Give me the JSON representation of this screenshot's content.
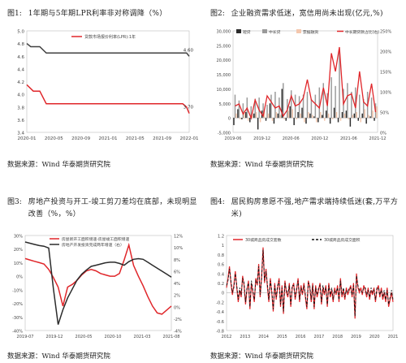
{
  "panels": [
    {
      "figure_num": "图1:",
      "title": "1年期与5年期LPR利率非对称调降（%）",
      "source": "数据来源：Wind 华泰期货研究院"
    },
    {
      "figure_num": "图2:",
      "title": "企业融资需求低迷，宽信用尚未出现(亿元,%)",
      "source": "数据来源：Wind 华泰期货研究院"
    },
    {
      "figure_num": "图3:",
      "title": "房地产投资与开工-竣工剪刀差均在底部，未现明显改善（%，%）",
      "source": "数据来源：Wind 华泰期货研究院"
    },
    {
      "figure_num": "图4:",
      "title": "居民购房意愿不强,地产需求端持续低迷(套,万平方米)",
      "source": "数据来源：Wind 华泰期货研究院"
    }
  ],
  "chart_data": [
    {
      "type": "line",
      "legend": [
        "贷款市场报价利率(LPR):1年"
      ],
      "x_ticks": [
        "2020-01",
        "2020-05",
        "2020-09",
        "2021-01",
        "2021-05",
        "2021-09",
        "2022-01"
      ],
      "ylim": [
        3.4,
        5.0
      ],
      "y_ticks": [
        "3.4",
        "3.6",
        "3.8",
        "4.0",
        "4.2",
        "4.4",
        "4.6",
        "4.8",
        "5.0"
      ],
      "series": [
        {
          "name": "贷款市场报价利率(LPR):1年",
          "color": "#e0262a",
          "x": [
            0,
            1,
            2,
            3,
            3.6,
            4,
            24,
            24.6,
            25
          ],
          "values": [
            4.15,
            4.05,
            4.05,
            3.85,
            3.85,
            3.85,
            3.85,
            3.8,
            3.7
          ]
        },
        {
          "name": "",
          "color": "#404040",
          "x": [
            0,
            0.6,
            1,
            2,
            3,
            3.6,
            4,
            24,
            24.6,
            25
          ],
          "values": [
            4.8,
            4.75,
            4.75,
            4.75,
            4.65,
            4.65,
            4.65,
            4.65,
            4.65,
            4.6
          ]
        }
      ],
      "x_range": [
        0,
        25
      ],
      "annotations": [
        "4.60",
        "3.70"
      ]
    },
    {
      "type": "bar",
      "legend": [
        "短贷",
        "中长贷",
        "票据融资",
        "中长期贷款占比(右)"
      ],
      "x_ticks": [
        "2019-06",
        "2019-12",
        "2020-06",
        "2020-12",
        "2021-06",
        "2021-12"
      ],
      "ylim": [
        -5000,
        30000
      ],
      "y_ticks": [
        "-5,000",
        "0",
        "5,000",
        "10,000",
        "15,000",
        "20,000",
        "25,000",
        "30,000"
      ],
      "y2lim": [
        0,
        250
      ],
      "y2_ticks": [
        "0%",
        "50%",
        "100%",
        "150%",
        "200%",
        "250%"
      ],
      "short": [
        -2500,
        3000,
        -500,
        2000,
        -1500,
        1500,
        -4000,
        2500,
        -1000,
        5000,
        -2000,
        1500,
        10000,
        -1000,
        4000,
        -2500,
        2000,
        3500,
        -2000,
        1500,
        500,
        -1500,
        1000,
        2500,
        -2000,
        3500,
        -1500,
        2000,
        2500,
        -3000,
        1500,
        -1000,
        1500,
        -2000,
        500,
        -1000
      ],
      "midlong": [
        8000,
        6000,
        5000,
        7000,
        4000,
        6500,
        7000,
        5000,
        4500,
        8000,
        9000,
        7000,
        12000,
        6500,
        9500,
        8000,
        7500,
        8000,
        9000,
        6500,
        8000,
        10500,
        12000,
        8500,
        14000,
        11000,
        23000,
        10000,
        12000,
        9000,
        10500,
        8000,
        6500,
        9000,
        7000,
        5000
      ],
      "bills": [
        1500,
        -500,
        2500,
        -1000,
        1000,
        2000,
        -1500,
        2500,
        1500,
        -1000,
        2000,
        1000,
        -500,
        2500,
        3000,
        -500,
        1500,
        -1500,
        2000,
        1000,
        -1500,
        2000,
        -1000,
        1500,
        -500,
        2000,
        -1000,
        1500,
        -500,
        1000,
        2000,
        -1500,
        3000,
        1000,
        2500,
        4000
      ],
      "ratio": [
        65,
        70,
        45,
        60,
        35,
        80,
        55,
        40,
        90,
        75,
        60,
        65,
        40,
        55,
        90,
        65,
        70,
        85,
        130,
        80,
        70,
        60,
        110,
        65,
        195,
        150,
        210,
        70,
        90,
        95,
        60,
        150,
        75,
        65,
        120,
        50
      ],
      "colors": {
        "short": "#2b2b2b",
        "midlong": "#9a9a9a",
        "bills": "#f4c7ad",
        "ratio": "#e0262a"
      }
    },
    {
      "type": "line",
      "legend": [
        "房屋新开工面积增速-房屋竣工面积增速",
        "房地产开发投资完成两年增速（右）"
      ],
      "x_ticks": [
        "2019-07",
        "2019-12",
        "2020-05",
        "2020-10",
        "2021-03",
        "2021-08"
      ],
      "ylim": [
        -40,
        30
      ],
      "y_ticks": [
        "-40%",
        "-30%",
        "-20%",
        "-10%",
        "0%",
        "10%",
        "20%",
        "30%"
      ],
      "y2lim": [
        -4,
        12
      ],
      "y2_ticks": [
        "-4%",
        "-2%",
        "0%",
        "2%",
        "4%",
        "6%",
        "8%",
        "10%",
        "12%"
      ],
      "series": [
        {
          "name": "房屋新开工面积增速-房屋竣工面积增速",
          "color": "#e0262a",
          "axis": "left",
          "values": [
            13,
            12,
            11,
            10,
            9,
            5,
            -1,
            -8,
            -22,
            -8,
            -6,
            -3,
            1,
            4,
            5,
            4,
            2,
            1,
            0,
            0,
            2,
            12,
            23,
            8,
            0,
            -7,
            -15,
            -22,
            -27,
            -28,
            -25,
            -22
          ]
        },
        {
          "name": "房地产开发投资完成两年增速（右）",
          "color": "#2b2b2b",
          "axis": "right",
          "values": [
            10.9,
            10.7,
            10.5,
            10.3,
            10.2,
            9.9,
            3,
            -3,
            -0.5,
            1.5,
            3,
            4.5,
            5.5,
            6.2,
            6.8,
            7,
            7.2,
            7.4,
            7.5,
            7.5,
            7.3,
            7,
            7.6,
            8,
            8.1,
            8,
            7.5,
            7,
            6.5,
            6,
            5.5,
            5
          ]
        }
      ],
      "x_range": [
        0,
        31
      ]
    },
    {
      "type": "line",
      "legend": [
        "30城商品房成交套数",
        "30城商品房成交面积"
      ],
      "x_ticks": [
        "2012",
        "2013",
        "2014",
        "2015",
        "2016",
        "2017",
        "2018",
        "2019",
        "2020",
        "2021"
      ],
      "ylim": [
        -0.8,
        1.2
      ],
      "y_ticks": [
        "-0.8",
        "-0.6",
        "-0.4",
        "-0.2",
        "0",
        "0.2",
        "0.4",
        "0.6",
        "0.8",
        "1",
        "1.2"
      ],
      "series": [
        {
          "name": "30城商品房成交套数",
          "color": "#e0262a",
          "values": [
            0.1,
            0.3,
            0.55,
            0.2,
            -0.05,
            0.15,
            0.45,
            0.1,
            -0.2,
            0.05,
            -0.1,
            0.35,
            0.15,
            -0.25,
            0.05,
            0.25,
            -0.35,
            0.2,
            0.0,
            -0.2,
            0.3,
            0.15,
            0.6,
            -0.1,
            0.35,
            0.95,
            0.2,
            0.5,
            0.1,
            -0.2,
            0.3,
            0.0,
            -0.4,
            0.2,
            -0.15,
            0.1,
            0.3,
            -0.3,
            0.15,
            -0.45,
            0.25,
            0.0,
            -0.1,
            0.2,
            -0.3,
            0.1,
            0.2,
            -0.15,
            0.05,
            0.3,
            -0.2,
            0.15,
            -0.05,
            0.2,
            -0.1,
            -0.35,
            0.25,
            0.1,
            -0.2,
            0.2,
            -0.35,
            0.15,
            -0.1,
            0.05,
            0.2,
            -0.25,
            0.1,
            -0.05,
            0.15,
            -0.3,
            0.2,
            -0.1,
            0.05,
            -0.2,
            0.1,
            -0.05,
            0.15,
            -0.2,
            0.3,
            -0.1,
            0.05,
            -0.15,
            0.1,
            -0.05,
            0.05,
            0.15,
            -0.1,
            0.2,
            -0.55,
            0.4,
            0.1,
            0.0,
            0.1,
            -0.05,
            0.15,
            0.05,
            -0.1,
            0.1,
            -0.15,
            0.05,
            -0.05,
            0.1,
            -0.2,
            0.05,
            0.15,
            -0.1,
            0.1,
            -0.15,
            0.0,
            -0.2,
            0.1,
            -0.3,
            -0.15,
            0.0,
            -0.2
          ],
          "dash": false
        },
        {
          "name": "30城商品房成交面积",
          "color": "#111111",
          "values": [
            0.15,
            0.25,
            0.5,
            0.25,
            0.0,
            0.1,
            0.4,
            0.15,
            -0.15,
            0.1,
            -0.05,
            0.3,
            0.2,
            -0.2,
            0.1,
            0.2,
            -0.3,
            0.25,
            0.05,
            -0.15,
            0.25,
            0.2,
            0.55,
            -0.05,
            0.3,
            0.9,
            0.25,
            0.45,
            0.15,
            -0.15,
            0.25,
            0.05,
            -0.35,
            0.15,
            -0.1,
            0.15,
            0.25,
            -0.25,
            0.1,
            -0.4,
            0.2,
            0.05,
            -0.05,
            0.15,
            -0.25,
            0.15,
            0.15,
            -0.1,
            0.1,
            0.25,
            -0.15,
            0.1,
            0.0,
            0.15,
            -0.05,
            -0.3,
            0.2,
            0.15,
            -0.15,
            0.15,
            -0.3,
            0.1,
            -0.05,
            0.1,
            0.15,
            -0.2,
            0.15,
            0.0,
            0.1,
            -0.25,
            0.15,
            -0.05,
            0.1,
            -0.15,
            0.05,
            0.0,
            0.1,
            -0.15,
            0.25,
            -0.05,
            0.1,
            -0.1,
            0.05,
            0.0,
            0.1,
            0.1,
            -0.05,
            0.15,
            -0.5,
            0.35,
            0.15,
            0.05,
            0.05,
            0.0,
            0.1,
            0.1,
            -0.05,
            0.05,
            -0.1,
            0.1,
            0.0,
            0.05,
            -0.15,
            0.1,
            0.1,
            -0.05,
            0.05,
            -0.1,
            0.05,
            -0.15,
            0.05,
            -0.25,
            -0.1,
            0.05,
            -0.15
          ],
          "dash": true
        }
      ]
    }
  ]
}
